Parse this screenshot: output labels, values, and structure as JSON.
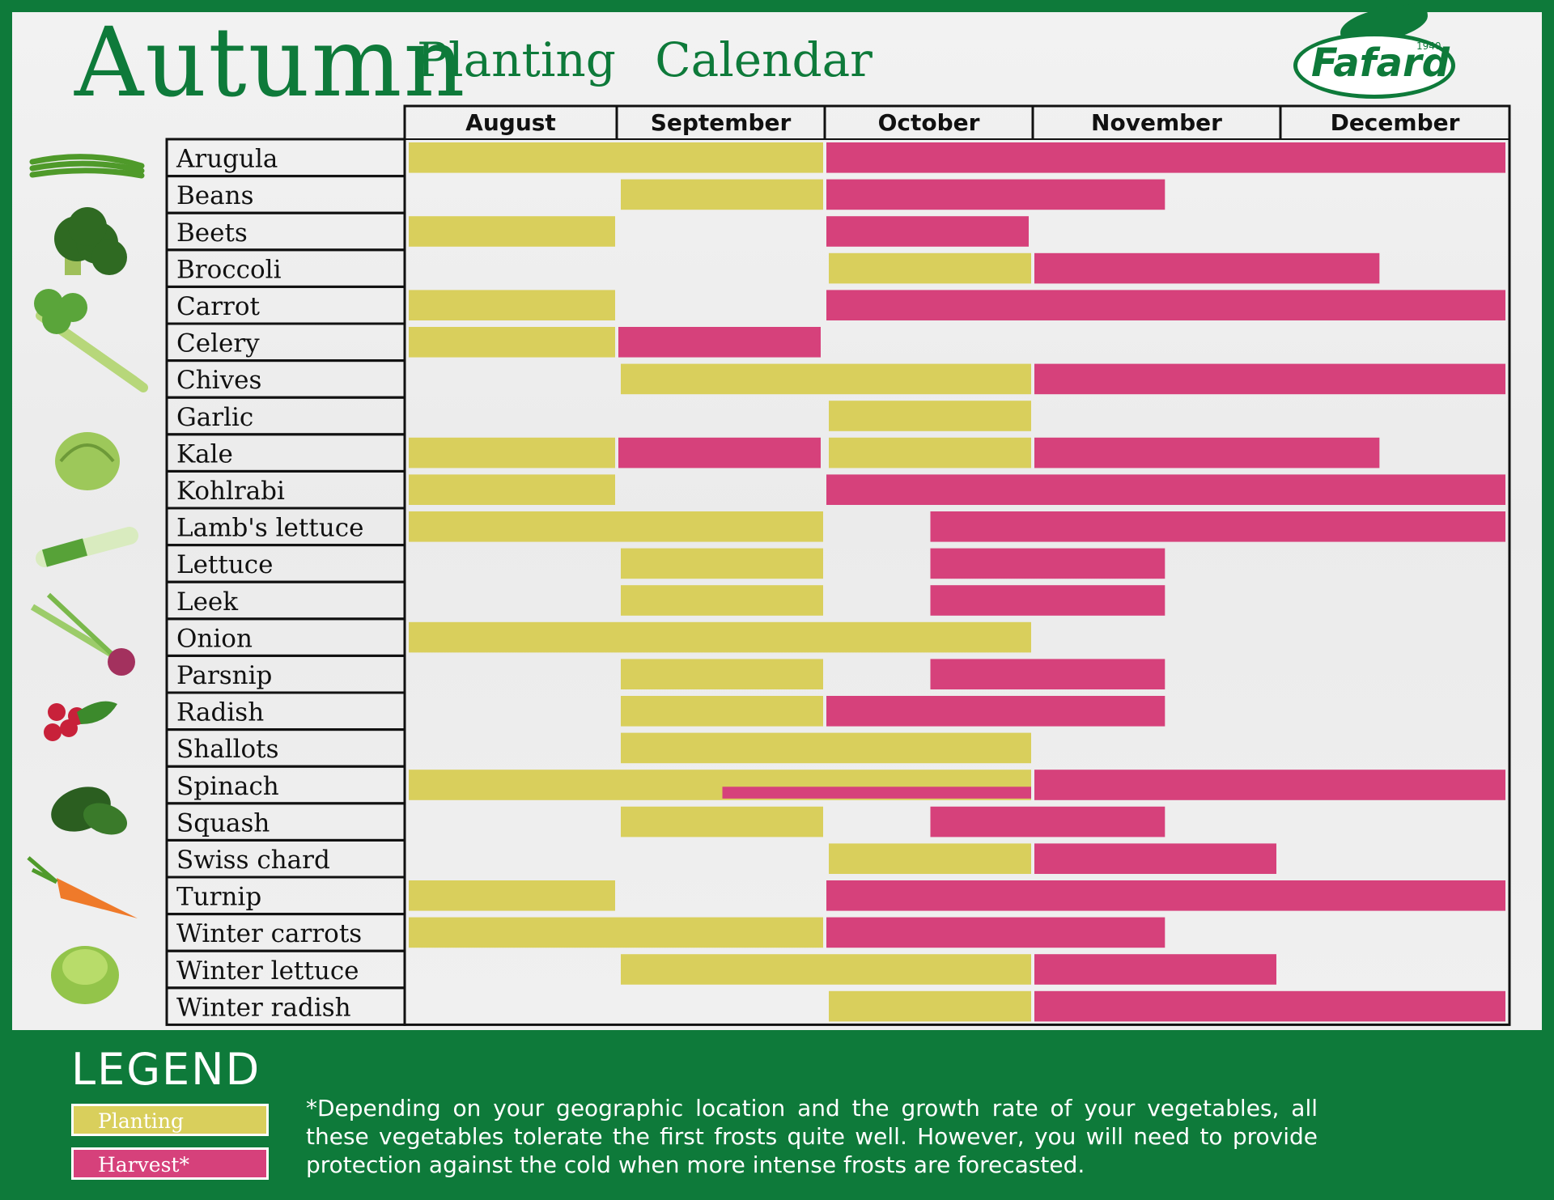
{
  "title": {
    "main": "Autumn",
    "sub": "Planting Calendar"
  },
  "brand": {
    "name": "Fafard",
    "year": "1940"
  },
  "colors": {
    "planting": "#d9cf5c",
    "harvest": "#d6417b",
    "brand_green": "#0e7a3a"
  },
  "legend": {
    "title": "LEGEND",
    "planting": "Planting",
    "harvest": "Harvest*",
    "footnote": "*Depending on your geographic location and the growth rate of your vegetables, all these vegetables tolerate the first frosts quite well. However, you will need to provide protection against the cold when more intense frosts are forecasted."
  },
  "chart_data": {
    "type": "gantt",
    "months": [
      "August",
      "September",
      "October",
      "November",
      "December"
    ],
    "time_unit": "month index (0 = start of August, 5 = end of December)",
    "series_names": [
      "Planting",
      "Harvest*"
    ],
    "rows": [
      {
        "crop": "Arugula",
        "planting": [
          [
            0,
            2.0
          ]
        ],
        "harvest": [
          [
            2.0,
            5.0
          ]
        ]
      },
      {
        "crop": "Beans",
        "planting": [
          [
            1.0,
            2.0
          ]
        ],
        "harvest": [
          [
            2.0,
            3.55
          ]
        ]
      },
      {
        "crop": "Beets",
        "planting": [
          [
            0,
            1.0
          ]
        ],
        "harvest": [
          [
            2.0,
            3.0
          ]
        ]
      },
      {
        "crop": "Broccoli",
        "planting": [
          [
            2.0,
            3.0
          ]
        ],
        "harvest": [
          [
            3.0,
            4.45
          ]
        ]
      },
      {
        "crop": "Carrot",
        "planting": [
          [
            0,
            1.0
          ]
        ],
        "harvest": [
          [
            2.0,
            5.0
          ]
        ]
      },
      {
        "crop": "Celery",
        "planting": [
          [
            0,
            1.0
          ]
        ],
        "harvest": [
          [
            1.0,
            2.0
          ]
        ]
      },
      {
        "crop": "Chives",
        "planting": [
          [
            1.0,
            3.0
          ]
        ],
        "harvest": [
          [
            3.0,
            5.0
          ]
        ]
      },
      {
        "crop": "Garlic",
        "planting": [
          [
            2.0,
            3.0
          ]
        ],
        "harvest": []
      },
      {
        "crop": "Kale",
        "planting": [
          [
            0,
            1.0
          ],
          [
            2.0,
            3.0
          ]
        ],
        "harvest": [
          [
            1.0,
            2.0
          ],
          [
            3.0,
            4.45
          ]
        ]
      },
      {
        "crop": "Kohlrabi",
        "planting": [
          [
            0,
            1.0
          ]
        ],
        "harvest": [
          [
            2.0,
            5.0
          ]
        ]
      },
      {
        "crop": "Lamb's lettuce",
        "planting": [
          [
            0,
            2.0
          ]
        ],
        "harvest": [
          [
            2.5,
            5.0
          ]
        ]
      },
      {
        "crop": "Lettuce",
        "planting": [
          [
            1.0,
            2.0
          ]
        ],
        "harvest": [
          [
            2.5,
            3.55
          ]
        ]
      },
      {
        "crop": "Leek",
        "planting": [
          [
            1.0,
            2.0
          ]
        ],
        "harvest": [
          [
            2.5,
            3.55
          ]
        ]
      },
      {
        "crop": "Onion",
        "planting": [
          [
            0,
            3.0
          ]
        ],
        "harvest": []
      },
      {
        "crop": "Parsnip",
        "planting": [
          [
            1.0,
            2.0
          ]
        ],
        "harvest": [
          [
            2.5,
            3.55
          ]
        ]
      },
      {
        "crop": "Radish",
        "planting": [
          [
            1.0,
            2.0
          ]
        ],
        "harvest": [
          [
            2.0,
            3.55
          ]
        ]
      },
      {
        "crop": "Shallots",
        "planting": [
          [
            1.0,
            3.0
          ]
        ],
        "harvest": []
      },
      {
        "crop": "Spinach",
        "planting": [
          [
            0,
            3.0
          ]
        ],
        "harvest": [
          [
            1.5,
            3.0
          ],
          [
            3.0,
            5.0
          ]
        ]
      },
      {
        "crop": "Squash",
        "planting": [
          [
            1.0,
            2.0
          ]
        ],
        "harvest": [
          [
            2.5,
            3.55
          ]
        ]
      },
      {
        "crop": "Swiss chard",
        "planting": [
          [
            2.0,
            3.0
          ]
        ],
        "harvest": [
          [
            3.0,
            4.0
          ]
        ]
      },
      {
        "crop": "Turnip",
        "planting": [
          [
            0,
            1.0
          ]
        ],
        "harvest": [
          [
            2.0,
            5.0
          ]
        ]
      },
      {
        "crop": "Winter carrots",
        "planting": [
          [
            0,
            2.0
          ]
        ],
        "harvest": [
          [
            2.0,
            3.55
          ]
        ]
      },
      {
        "crop": "Winter lettuce",
        "planting": [
          [
            1.0,
            3.0
          ]
        ],
        "harvest": [
          [
            3.0,
            4.0
          ]
        ]
      },
      {
        "crop": "Winter radish",
        "planting": [
          [
            2.0,
            3.0
          ]
        ],
        "harvest": [
          [
            3.0,
            5.0
          ]
        ]
      }
    ],
    "illustrations": [
      "green-beans-icon",
      "broccoli-icon",
      "celery-icon",
      "cabbage-icon",
      "leek-icon",
      "onion-icon",
      "radish-icon",
      "spinach-icon",
      "carrot-icon",
      "lettuce-icon"
    ]
  }
}
